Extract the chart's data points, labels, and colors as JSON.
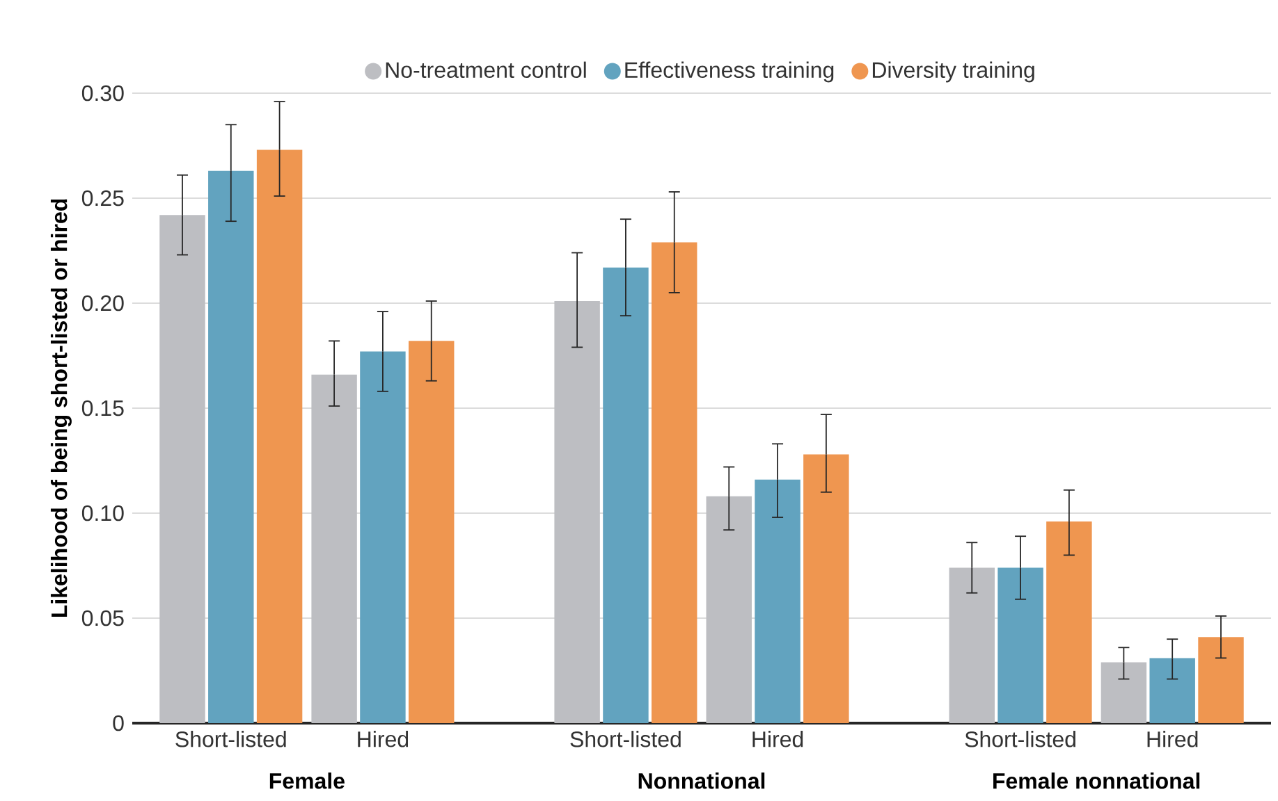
{
  "chart_data": {
    "type": "bar",
    "ylabel": "Likelihood of being short-listed or hired",
    "categories": [
      "Short-listed",
      "Hired",
      "Short-listed",
      "Hired",
      "Short-listed",
      "Hired"
    ],
    "annotations": [
      "Female",
      "Nonnational",
      "Female nonnational"
    ],
    "series": [
      {
        "name": "No-treatment control",
        "color": "#bdbec2",
        "values": [
          0.242,
          0.166,
          0.201,
          0.108,
          0.074,
          0.029
        ],
        "errors": [
          [
            0.223,
            0.261
          ],
          [
            0.151,
            0.182
          ],
          [
            0.179,
            0.224
          ],
          [
            0.092,
            0.122
          ],
          [
            0.062,
            0.086
          ],
          [
            0.021,
            0.036
          ]
        ]
      },
      {
        "name": "Effectiveness training",
        "color": "#62a3bf",
        "values": [
          0.263,
          0.177,
          0.217,
          0.116,
          0.074,
          0.031
        ],
        "errors": [
          [
            0.239,
            0.285
          ],
          [
            0.158,
            0.196
          ],
          [
            0.194,
            0.24
          ],
          [
            0.098,
            0.133
          ],
          [
            0.059,
            0.089
          ],
          [
            0.021,
            0.04
          ]
        ]
      },
      {
        "name": "Diversity training",
        "color": "#ef9650",
        "values": [
          0.273,
          0.182,
          0.229,
          0.128,
          0.096,
          0.041
        ],
        "errors": [
          [
            0.251,
            0.296
          ],
          [
            0.163,
            0.201
          ],
          [
            0.205,
            0.253
          ],
          [
            0.11,
            0.147
          ],
          [
            0.08,
            0.111
          ],
          [
            0.031,
            0.051
          ]
        ]
      }
    ],
    "ylim": [
      0,
      0.3
    ],
    "yticks": [
      {
        "value": 0,
        "label": "0"
      },
      {
        "value": 0.05,
        "label": "0.05"
      },
      {
        "value": 0.1,
        "label": "0.10"
      },
      {
        "value": 0.15,
        "label": "0.15"
      },
      {
        "value": 0.2,
        "label": "0.20"
      },
      {
        "value": 0.25,
        "label": "0.25"
      },
      {
        "value": 0.3,
        "label": "0.30"
      }
    ],
    "grid": "y",
    "legend": "top"
  }
}
